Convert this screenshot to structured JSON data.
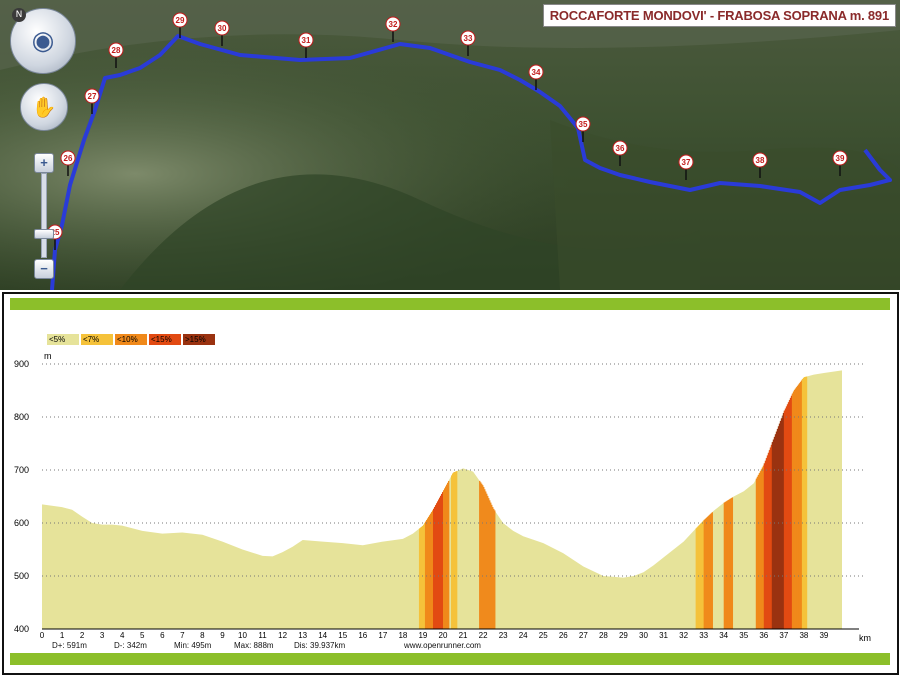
{
  "map": {
    "route_title": "ROCCAFORTE MONDOVI' - FRABOSA SOPRANA m. 891",
    "north_label": "N",
    "nav_glyph": "◉",
    "hand_glyph": "✋",
    "zoom_in": "+",
    "zoom_out": "−",
    "markers": [
      "25",
      "26",
      "27",
      "28",
      "29",
      "30",
      "31",
      "32",
      "33",
      "34",
      "35",
      "36",
      "37",
      "38",
      "39"
    ],
    "route_color": "#2a3bd8"
  },
  "legend": [
    {
      "label": "<5%",
      "color": "#e6e39a"
    },
    {
      "label": "<7%",
      "color": "#f5c23a"
    },
    {
      "label": "<10%",
      "color": "#f0891a"
    },
    {
      "label": "<15%",
      "color": "#e24a12"
    },
    {
      "label": ">15%",
      "color": "#9a3210"
    }
  ],
  "footer": {
    "dplus": "D+: 591m",
    "dminus": "D-: 342m",
    "min": "Min: 495m",
    "max": "Max: 888m",
    "dis": "Dis: 39.937km",
    "site": "www.openrunner.com"
  },
  "chart_data": {
    "type": "area",
    "ylabel": "m",
    "xlabel": "km",
    "ylim": [
      400,
      900
    ],
    "xlim": [
      0,
      40
    ],
    "yticks": [
      400,
      500,
      600,
      700,
      800,
      900
    ],
    "xticks": [
      0,
      1,
      2,
      3,
      4,
      5,
      6,
      7,
      8,
      9,
      10,
      11,
      12,
      13,
      14,
      15,
      16,
      17,
      18,
      19,
      20,
      21,
      22,
      23,
      24,
      25,
      26,
      27,
      28,
      29,
      30,
      31,
      32,
      33,
      34,
      35,
      36,
      37,
      38,
      39
    ],
    "grid": "horizontal dotted",
    "fill_color": "#e6e39a",
    "x": [
      0,
      1,
      1.5,
      2,
      2.5,
      3,
      3.5,
      4,
      5,
      6,
      7,
      8,
      9,
      10,
      11,
      11.5,
      12,
      12.5,
      13,
      14,
      15,
      16,
      17,
      18,
      18.5,
      19,
      19.5,
      20,
      20.5,
      21,
      21.5,
      22,
      22.5,
      23,
      23.5,
      24,
      25,
      26,
      27,
      28,
      29,
      29.5,
      30,
      30.5,
      31,
      31.5,
      32,
      32.5,
      33,
      33.5,
      34,
      34.5,
      35,
      35.5,
      36,
      36.5,
      37,
      37.5,
      38,
      38.5,
      39,
      39.9
    ],
    "y": [
      635,
      630,
      625,
      612,
      600,
      597,
      597,
      595,
      585,
      580,
      582,
      578,
      565,
      550,
      538,
      537,
      545,
      555,
      568,
      565,
      562,
      558,
      565,
      570,
      580,
      595,
      625,
      660,
      695,
      703,
      697,
      670,
      628,
      600,
      585,
      575,
      562,
      543,
      518,
      500,
      497,
      500,
      507,
      520,
      535,
      550,
      565,
      585,
      605,
      623,
      638,
      650,
      660,
      675,
      710,
      760,
      810,
      850,
      875,
      880,
      883,
      888
    ],
    "grade_bands": [
      {
        "from": 18.8,
        "to": 19.1,
        "grade": "<7%"
      },
      {
        "from": 19.1,
        "to": 19.5,
        "grade": "<10%"
      },
      {
        "from": 19.5,
        "to": 20.0,
        "grade": "<15%"
      },
      {
        "from": 20.0,
        "to": 20.3,
        "grade": "<10%"
      },
      {
        "from": 20.4,
        "to": 20.7,
        "grade": "<7%"
      },
      {
        "from": 21.8,
        "to": 22.1,
        "grade": "<10%"
      },
      {
        "from": 22.1,
        "to": 22.6,
        "grade": "<10%"
      },
      {
        "from": 32.6,
        "to": 33.0,
        "grade": "<7%"
      },
      {
        "from": 33.0,
        "to": 33.4,
        "grade": "<10%"
      },
      {
        "from": 34.0,
        "to": 34.4,
        "grade": "<10%"
      },
      {
        "from": 35.6,
        "to": 36.0,
        "grade": "<10%"
      },
      {
        "from": 36.0,
        "to": 36.4,
        "grade": "<15%"
      },
      {
        "from": 36.4,
        "to": 37.0,
        "grade": ">15%"
      },
      {
        "from": 37.0,
        "to": 37.4,
        "grade": "<15%"
      },
      {
        "from": 37.4,
        "to": 37.9,
        "grade": "<10%"
      },
      {
        "from": 37.9,
        "to": 38.1,
        "grade": "<7%"
      }
    ]
  }
}
